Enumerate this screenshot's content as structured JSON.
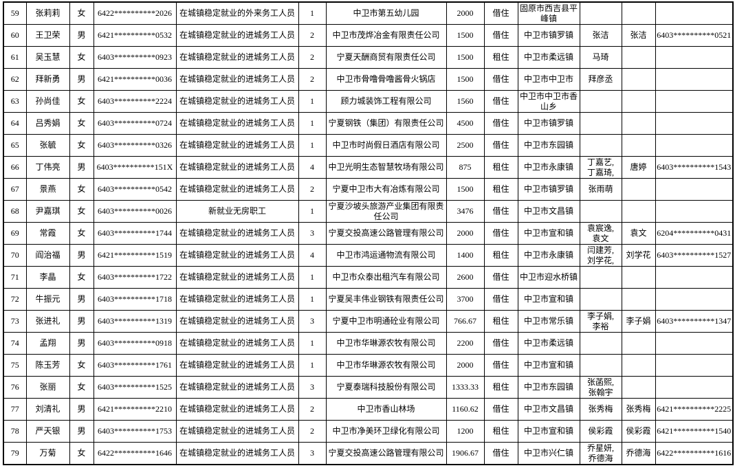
{
  "accent_colors": {
    "border": "#000000",
    "background": "#ffffff",
    "text": "#000000"
  },
  "table": {
    "rows": [
      {
        "row_number": "59",
        "name": "张莉莉",
        "gender": "女",
        "id_number": "6422**********2026",
        "category": "在城镇稳定就业的外来务工人员",
        "count": "1",
        "employer": "中卫市第五幼儿园",
        "amount": "2000",
        "tenancy": "借住",
        "location": "固原市西吉县平峰镇",
        "family_members": "",
        "co_resident": "",
        "co_resident_id": ""
      },
      {
        "row_number": "60",
        "name": "王卫荣",
        "gender": "男",
        "id_number": "6421**********0532",
        "category": "在城镇稳定就业的进城务工人员",
        "count": "2",
        "employer": "中卫市茂烨冶金有限责任公司",
        "amount": "1500",
        "tenancy": "借住",
        "location": "中卫市镇罗镇",
        "family_members": "张洁",
        "co_resident": "张洁",
        "co_resident_id": "6403**********0521"
      },
      {
        "row_number": "61",
        "name": "吴玉慧",
        "gender": "女",
        "id_number": "6403**********0923",
        "category": "在城镇稳定就业的进城务工人员",
        "count": "2",
        "employer": "宁夏天酬商贸有限责任公司",
        "amount": "1500",
        "tenancy": "租住",
        "location": "中卫市柔远镇",
        "family_members": "马琦",
        "co_resident": "",
        "co_resident_id": ""
      },
      {
        "row_number": "62",
        "name": "拜新勇",
        "gender": "男",
        "id_number": "6421**********0036",
        "category": "在城镇稳定就业的进城务工人员",
        "count": "2",
        "employer": "中卫市骨噜骨噜酱骨火锅店",
        "amount": "1500",
        "tenancy": "借住",
        "location": "中卫市中卫市",
        "family_members": "拜彦丞",
        "co_resident": "",
        "co_resident_id": ""
      },
      {
        "row_number": "63",
        "name": "孙尚佳",
        "gender": "女",
        "id_number": "6403**********2224",
        "category": "在城镇稳定就业的进城务工人员",
        "count": "1",
        "employer": "顾力城装饰工程有限公司",
        "amount": "1560",
        "tenancy": "借住",
        "location": "中卫市中卫市香山乡",
        "family_members": "",
        "co_resident": "",
        "co_resident_id": ""
      },
      {
        "row_number": "64",
        "name": "吕秀娟",
        "gender": "女",
        "id_number": "6403**********0724",
        "category": "在城镇稳定就业的进城务工人员",
        "count": "1",
        "employer": "宁夏钢铁（集团）有限责任公司",
        "amount": "4500",
        "tenancy": "借住",
        "location": "中卫市镇罗镇",
        "family_members": "",
        "co_resident": "",
        "co_resident_id": ""
      },
      {
        "row_number": "65",
        "name": "张毓",
        "gender": "女",
        "id_number": "6403**********0326",
        "category": "在城镇稳定就业的进城务工人员",
        "count": "1",
        "employer": "中卫市时尚假日酒店有限公司",
        "amount": "2500",
        "tenancy": "借住",
        "location": "中卫市东园镇",
        "family_members": "",
        "co_resident": "",
        "co_resident_id": ""
      },
      {
        "row_number": "66",
        "name": "丁伟亮",
        "gender": "男",
        "id_number": "6403**********151X",
        "category": "在城镇稳定就业的进城务工人员",
        "count": "4",
        "employer": "中卫光明生态智慧牧场有限公司",
        "amount": "875",
        "tenancy": "租住",
        "location": "中卫市永康镇",
        "family_members": "丁嘉艺,\n丁嘉琦,",
        "co_resident": "唐婷",
        "co_resident_id": "6403**********1543"
      },
      {
        "row_number": "67",
        "name": "景燕",
        "gender": "女",
        "id_number": "6403**********0542",
        "category": "在城镇稳定就业的进城务工人员",
        "count": "2",
        "employer": "宁夏中卫市大有冶炼有限公司",
        "amount": "1500",
        "tenancy": "租住",
        "location": "中卫市镇罗镇",
        "family_members": "张雨萌",
        "co_resident": "",
        "co_resident_id": ""
      },
      {
        "row_number": "68",
        "name": "尹嘉琪",
        "gender": "女",
        "id_number": "6403**********0026",
        "category": "新就业无房职工",
        "count": "1",
        "employer": "宁夏沙坡头旅游产业集团有限责任公司",
        "amount": "3476",
        "tenancy": "借住",
        "location": "中卫市文昌镇",
        "family_members": "",
        "co_resident": "",
        "co_resident_id": ""
      },
      {
        "row_number": "69",
        "name": "常霞",
        "gender": "女",
        "id_number": "6403**********1744",
        "category": "在城镇稳定就业的进城务工人员",
        "count": "3",
        "employer": "宁夏交投高速公路管理有限公司",
        "amount": "2000",
        "tenancy": "借住",
        "location": "中卫市宣和镇",
        "family_members": "袁宸逸,\n袁文",
        "co_resident": "袁文",
        "co_resident_id": "6204**********0431"
      },
      {
        "row_number": "70",
        "name": "阎治福",
        "gender": "男",
        "id_number": "6421**********1519",
        "category": "在城镇稳定就业的进城务工人员",
        "count": "4",
        "employer": "中卫市鸿运通物流有限公司",
        "amount": "1400",
        "tenancy": "租住",
        "location": "中卫市永康镇",
        "family_members": "闫建芳,\n刘学花,",
        "co_resident": "刘学花",
        "co_resident_id": "6403**********1527"
      },
      {
        "row_number": "71",
        "name": "李晶",
        "gender": "女",
        "id_number": "6403**********1722",
        "category": "在城镇稳定就业的进城务工人员",
        "count": "1",
        "employer": "中卫市众泰出租汽车有限公司",
        "amount": "2600",
        "tenancy": "借住",
        "location": "中卫市迎水桥镇",
        "family_members": "",
        "co_resident": "",
        "co_resident_id": ""
      },
      {
        "row_number": "72",
        "name": "牛振元",
        "gender": "男",
        "id_number": "6403**********1718",
        "category": "在城镇稳定就业的进城务工人员",
        "count": "1",
        "employer": "宁夏吴丰伟业钢铁有限责任公司",
        "amount": "3700",
        "tenancy": "借住",
        "location": "中卫市宣和镇",
        "family_members": "",
        "co_resident": "",
        "co_resident_id": ""
      },
      {
        "row_number": "73",
        "name": "张进礼",
        "gender": "男",
        "id_number": "6403**********1319",
        "category": "在城镇稳定就业的进城务工人员",
        "count": "3",
        "employer": "宁夏中卫市明通砼业有限公司",
        "amount": "766.67",
        "tenancy": "租住",
        "location": "中卫市常乐镇",
        "family_members": "李子娟,\n李裕",
        "co_resident": "李子娟",
        "co_resident_id": "6403**********1347"
      },
      {
        "row_number": "74",
        "name": "孟翔",
        "gender": "男",
        "id_number": "6403**********0918",
        "category": "在城镇稳定就业的进城务工人员",
        "count": "1",
        "employer": "中卫市华琳源农牧有限公司",
        "amount": "2200",
        "tenancy": "借住",
        "location": "中卫市柔远镇",
        "family_members": "",
        "co_resident": "",
        "co_resident_id": ""
      },
      {
        "row_number": "75",
        "name": "陈玉芳",
        "gender": "女",
        "id_number": "6403**********1761",
        "category": "在城镇稳定就业的进城务工人员",
        "count": "1",
        "employer": "中卫市华琳源农牧有限公司",
        "amount": "2000",
        "tenancy": "借住",
        "location": "中卫市宣和镇",
        "family_members": "",
        "co_resident": "",
        "co_resident_id": ""
      },
      {
        "row_number": "76",
        "name": "张丽",
        "gender": "女",
        "id_number": "6403**********1525",
        "category": "在城镇稳定就业的进城务工人员",
        "count": "3",
        "employer": "宁夏泰瑞科技股份有限公司",
        "amount": "1333.33",
        "tenancy": "租住",
        "location": "中卫市东园镇",
        "family_members": "张菡熙,\n张翰宇",
        "co_resident": "",
        "co_resident_id": ""
      },
      {
        "row_number": "77",
        "name": "刘清礼",
        "gender": "男",
        "id_number": "6421**********2210",
        "category": "在城镇稳定就业的进城务工人员",
        "count": "2",
        "employer": "中卫市香山林场",
        "amount": "1160.62",
        "tenancy": "借住",
        "location": "中卫市文昌镇",
        "family_members": "张秀梅",
        "co_resident": "张秀梅",
        "co_resident_id": "6421**********2225"
      },
      {
        "row_number": "78",
        "name": "严天银",
        "gender": "男",
        "id_number": "6403**********1753",
        "category": "在城镇稳定就业的进城务工人员",
        "count": "2",
        "employer": "中卫市净美环卫绿化有限公司",
        "amount": "1200",
        "tenancy": "租住",
        "location": "中卫市宣和镇",
        "family_members": "侯彩霞",
        "co_resident": "侯彩霞",
        "co_resident_id": "6421**********1540"
      },
      {
        "row_number": "79",
        "name": "万菊",
        "gender": "女",
        "id_number": "6422**********1646",
        "category": "在城镇稳定就业的进城务工人员",
        "count": "3",
        "employer": "宁夏交投高速公路管理有限公司",
        "amount": "1906.67",
        "tenancy": "借住",
        "location": "中卫市兴仁镇",
        "family_members": "乔星妍,\n乔德海",
        "co_resident": "乔德海",
        "co_resident_id": "6422**********1616"
      }
    ]
  }
}
